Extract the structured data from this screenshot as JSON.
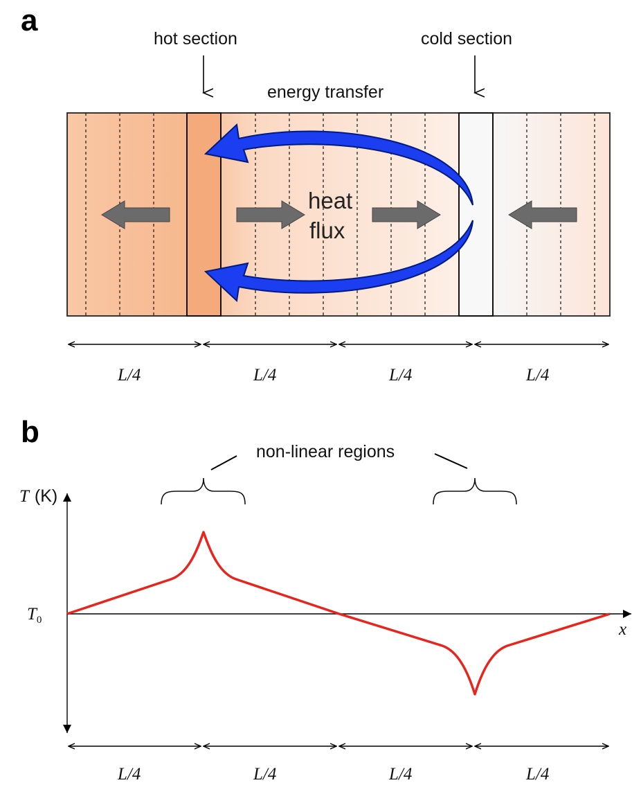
{
  "panel_a": {
    "letter": "a",
    "hot_label": "hot section",
    "cold_label": "cold section",
    "energy_label": "energy transfer",
    "heat_label_1": "heat",
    "heat_label_2": "flux",
    "segment_labels": [
      "L/4",
      "L/4",
      "L/4",
      "L/4"
    ],
    "colors": {
      "hot": "#f6b48a",
      "warm": "#fbd8c0",
      "cold": "#f7f7f8",
      "arrow_blue": "#1133ee",
      "flux_arrow": "#666666"
    },
    "icons": [
      "down-arrow-icon",
      "curved-arrow-icon",
      "gray-arrow-icon"
    ]
  },
  "panel_b": {
    "letter": "b",
    "region_label": "non-linear regions",
    "y_axis_label_symbol": "T",
    "y_axis_label_unit": "(K)",
    "y_ref_symbol": "T",
    "y_ref_subscript": "0",
    "x_axis_label": "x",
    "segment_labels": [
      "L/4",
      "L/4",
      "L/4",
      "L/4"
    ],
    "line_color": "#e8251c"
  }
}
